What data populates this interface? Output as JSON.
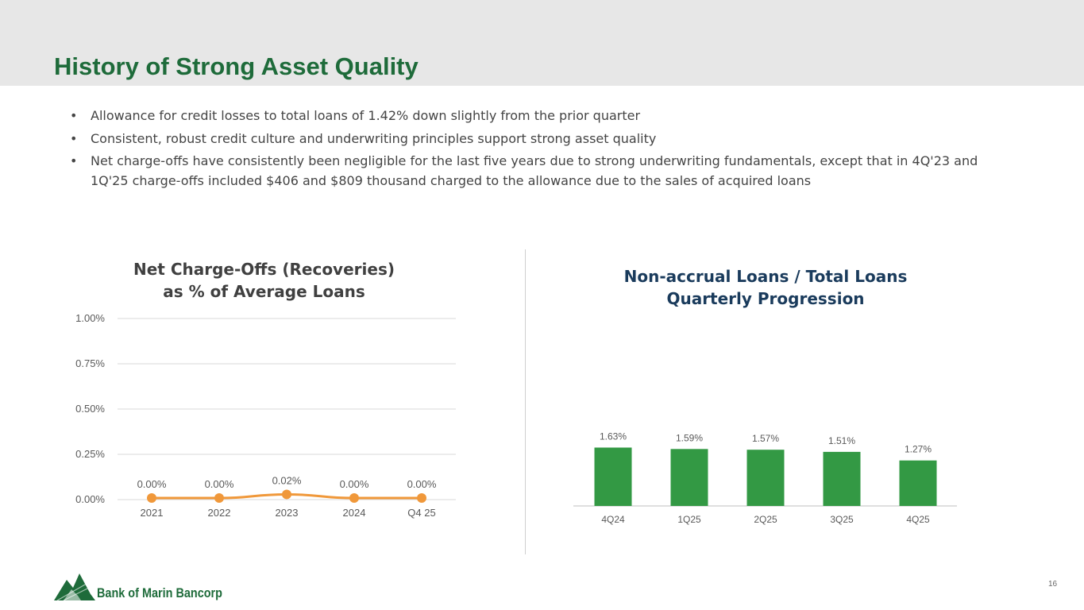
{
  "title": "History of Strong Asset Quality",
  "bullets": [
    "Allowance for credit losses to total loans of 1.42% down slightly from the prior quarter",
    "Consistent, robust credit culture and underwriting principles support strong asset quality",
    "Net charge-offs have consistently been negligible for the last five years due to strong underwriting fundamentals, except that in 4Q'23 and 1Q'25 charge-offs included $406 and $809 thousand charged to the allowance due to the sales of acquired loans"
  ],
  "bullet_marker": "•",
  "colors": {
    "title": "#1e6b3a",
    "header_bg": "#e7e7e7",
    "line": "#f0983a",
    "bar": "#339944",
    "right_title": "#1a3b5c"
  },
  "chart_data": [
    {
      "type": "line",
      "title_lines": [
        "Net Charge-Offs (Recoveries)",
        "as % of Average Loans"
      ],
      "categories": [
        "2021",
        "2022",
        "2023",
        "2024",
        "Q4 25"
      ],
      "values": [
        0.0,
        0.0,
        0.02,
        0.0,
        0.0
      ],
      "data_labels": [
        "0.00%",
        "0.00%",
        "0.02%",
        "0.00%",
        "0.00%"
      ],
      "y_ticks": [
        "0.00%",
        "0.25%",
        "0.50%",
        "0.75%",
        "1.00%"
      ],
      "ylim": [
        0,
        1.0
      ],
      "grid": true
    },
    {
      "type": "bar",
      "title_lines": [
        "Non-accrual Loans / Total Loans",
        "Quarterly Progression"
      ],
      "categories": [
        "4Q24",
        "1Q25",
        "2Q25",
        "3Q25",
        "4Q25"
      ],
      "values": [
        1.63,
        1.59,
        1.57,
        1.51,
        1.27
      ],
      "data_labels": [
        "1.63%",
        "1.59%",
        "1.57%",
        "1.51%",
        "1.27%"
      ]
    }
  ],
  "logo_text": "Bank of Marin Bancorp",
  "page_number": "16"
}
